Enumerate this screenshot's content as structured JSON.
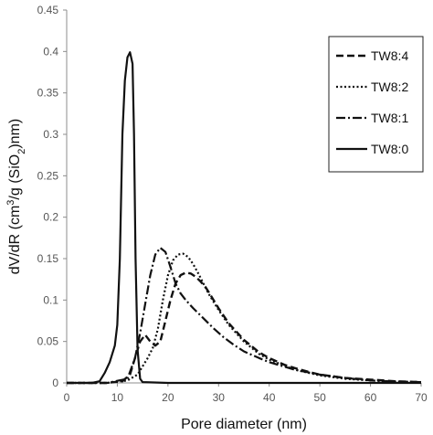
{
  "chart_data": {
    "type": "line",
    "title": "",
    "xlabel": "Pore diameter (nm)",
    "ylabel_parts": [
      "dV/dR (cm",
      "3",
      "/g (SiO",
      "2",
      ")nm)"
    ],
    "xlim": [
      0,
      70
    ],
    "ylim": [
      0,
      0.45
    ],
    "x_ticks": [
      0,
      10,
      20,
      30,
      40,
      50,
      60,
      70
    ],
    "y_ticks": [
      0,
      0.05,
      0.1,
      0.15,
      0.2,
      0.25,
      0.3,
      0.35,
      0.4,
      0.45
    ],
    "x_tick_labels": [
      "0",
      "10",
      "20",
      "30",
      "40",
      "50",
      "60",
      "70"
    ],
    "y_tick_labels": [
      "0",
      "0.05",
      "0.1",
      "0.15",
      "0.2",
      "0.25",
      "0.3",
      "0.35",
      "0.4",
      "0.45"
    ],
    "grid": false,
    "legend_position": "top-right",
    "series": [
      {
        "name": "TW8:4",
        "dash": "dashed",
        "x": [
          0,
          8,
          11,
          12.5,
          13.5,
          14.5,
          15.5,
          16.5,
          17.5,
          18.5,
          19.5,
          20.5,
          21.5,
          22.5,
          23.5,
          24.5,
          25.5,
          26.5,
          27.5,
          28.5,
          30,
          32,
          35,
          38,
          40,
          43,
          45,
          48,
          50,
          55,
          60,
          65,
          70
        ],
        "y": [
          0,
          0,
          0.002,
          0.01,
          0.03,
          0.05,
          0.058,
          0.05,
          0.045,
          0.05,
          0.075,
          0.1,
          0.12,
          0.13,
          0.133,
          0.132,
          0.128,
          0.122,
          0.115,
          0.105,
          0.09,
          0.072,
          0.052,
          0.037,
          0.03,
          0.022,
          0.018,
          0.013,
          0.01,
          0.006,
          0.004,
          0.002,
          0.001
        ]
      },
      {
        "name": "TW8:2",
        "dash": "dotted",
        "x": [
          0,
          8,
          12,
          14,
          15,
          16,
          17,
          18,
          19,
          20,
          21,
          22,
          23,
          24,
          25,
          26,
          27,
          28,
          30,
          32,
          35,
          38,
          40,
          45,
          50,
          55,
          60,
          65,
          70
        ],
        "y": [
          0,
          0,
          0.003,
          0.01,
          0.02,
          0.03,
          0.042,
          0.065,
          0.1,
          0.13,
          0.148,
          0.155,
          0.156,
          0.152,
          0.143,
          0.132,
          0.12,
          0.108,
          0.088,
          0.07,
          0.05,
          0.035,
          0.028,
          0.016,
          0.009,
          0.005,
          0.003,
          0.0015,
          0.001
        ]
      },
      {
        "name": "TW8:1",
        "dash": "dashdot",
        "x": [
          0,
          8,
          12,
          13.5,
          14.5,
          15.5,
          16.5,
          17.5,
          18.5,
          19.5,
          20.5,
          21.5,
          22.5,
          23.5,
          25,
          27,
          29,
          31,
          33,
          35,
          38,
          40,
          45,
          50,
          55,
          60,
          65,
          70
        ],
        "y": [
          0,
          0,
          0.005,
          0.03,
          0.06,
          0.095,
          0.13,
          0.155,
          0.163,
          0.158,
          0.14,
          0.12,
          0.108,
          0.1,
          0.09,
          0.078,
          0.066,
          0.055,
          0.046,
          0.038,
          0.03,
          0.025,
          0.016,
          0.01,
          0.006,
          0.003,
          0.0015,
          0.001
        ]
      },
      {
        "name": "TW8:0",
        "dash": "solid",
        "x": [
          0,
          5,
          6.5,
          7.5,
          8.5,
          9.5,
          10,
          10.5,
          11,
          11.5,
          12,
          12.5,
          13,
          13.3,
          13.6,
          14,
          14.5,
          15,
          20,
          30,
          40,
          50,
          60,
          70
        ],
        "y": [
          0,
          0,
          0.002,
          0.012,
          0.025,
          0.045,
          0.07,
          0.15,
          0.3,
          0.365,
          0.393,
          0.399,
          0.385,
          0.3,
          0.15,
          0.04,
          0.005,
          0.001,
          0,
          0,
          0,
          0,
          0,
          0
        ]
      }
    ]
  }
}
